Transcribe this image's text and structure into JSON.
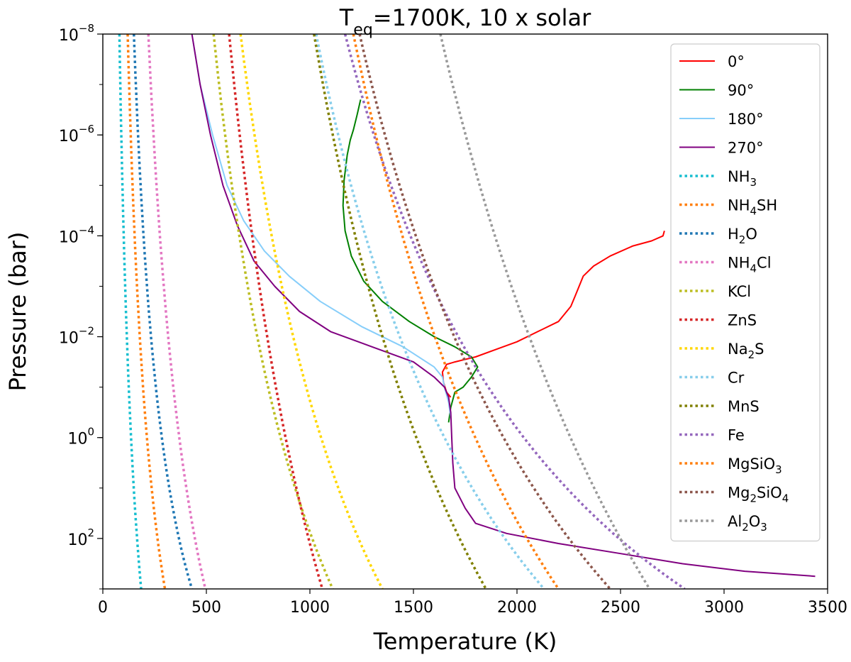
{
  "chart_data": {
    "type": "line",
    "title": {
      "main": "T",
      "sub": "eq",
      "rest": "=1700K, 10 x solar"
    },
    "xlabel": "Temperature (K)",
    "ylabel": "Pressure (bar)",
    "xlim": [
      0,
      3500
    ],
    "ylim_log10": [
      -8,
      3
    ],
    "y_scale": "log",
    "y_inverted": true,
    "xticks": [
      0,
      500,
      1000,
      1500,
      2000,
      2500,
      3000,
      3500
    ],
    "yticks": [
      {
        "base": "10",
        "exp": "−8",
        "value": -8
      },
      {
        "base": "10",
        "exp": "−6",
        "value": -6
      },
      {
        "base": "10",
        "exp": "−4",
        "value": -4
      },
      {
        "base": "10",
        "exp": "−2",
        "value": -2
      },
      {
        "base": "10",
        "exp": "0",
        "value": 0
      },
      {
        "base": "10",
        "exp": "2",
        "value": 2
      }
    ],
    "legend_position": "upper right",
    "grid": false,
    "series": [
      {
        "name": "0°",
        "color": "#ff0000",
        "style": "solid",
        "t": [
          2712,
          2705,
          2650,
          2560,
          2450,
          2370,
          2320,
          2300,
          2280,
          2260,
          2200,
          2100,
          2000,
          1900,
          1800,
          1750,
          1700,
          1660,
          1640,
          1645,
          1660,
          1680
        ],
        "logp": [
          -4.1,
          -4.0,
          -3.9,
          -3.8,
          -3.6,
          -3.4,
          -3.2,
          -3.0,
          -2.8,
          -2.6,
          -2.3,
          -2.1,
          -1.9,
          -1.75,
          -1.6,
          -1.55,
          -1.5,
          -1.45,
          -1.3,
          -1.1,
          -0.9,
          -0.8
        ]
      },
      {
        "name": "90°",
        "color": "#008000",
        "style": "solid",
        "t": [
          1245,
          1228,
          1210,
          1195,
          1180,
          1165,
          1160,
          1170,
          1200,
          1260,
          1350,
          1480,
          1600,
          1700,
          1780,
          1810,
          1780,
          1740,
          1700,
          1680,
          1670
        ],
        "logp": [
          -6.7,
          -6.4,
          -6.1,
          -5.9,
          -5.6,
          -5.1,
          -4.6,
          -4.1,
          -3.6,
          -3.1,
          -2.7,
          -2.3,
          -2.0,
          -1.8,
          -1.6,
          -1.4,
          -1.2,
          -1.0,
          -0.9,
          -0.6,
          -0.3
        ]
      },
      {
        "name": "180°",
        "color": "#87cefa",
        "style": "solid",
        "t": [
          430,
          470,
          530,
          600,
          680,
          780,
          900,
          1050,
          1250,
          1450,
          1600,
          1640,
          1650,
          1670,
          1680
        ],
        "logp": [
          -8.0,
          -7.0,
          -6.0,
          -5.0,
          -4.3,
          -3.7,
          -3.2,
          -2.7,
          -2.2,
          -1.8,
          -1.4,
          -1.2,
          -1.0,
          -0.7,
          -0.4
        ]
      },
      {
        "name": "270°",
        "color": "#800080",
        "style": "solid",
        "t": [
          430,
          470,
          520,
          580,
          650,
          730,
          830,
          950,
          1100,
          1300,
          1500,
          1600,
          1650,
          1670,
          1680,
          1685,
          1690,
          1700,
          1750,
          1800,
          1950,
          2200,
          2500,
          2800,
          3100,
          3440
        ],
        "logp": [
          -8.0,
          -7.0,
          -6.0,
          -5.0,
          -4.2,
          -3.5,
          -3.0,
          -2.5,
          -2.1,
          -1.8,
          -1.5,
          -1.2,
          -1.0,
          -0.8,
          -0.5,
          0.0,
          0.5,
          1.0,
          1.4,
          1.7,
          1.9,
          2.1,
          2.3,
          2.5,
          2.65,
          2.75
        ]
      },
      {
        "name": "NH₃",
        "label": {
          "base": "NH",
          "sub": "3"
        },
        "color": "#17becf",
        "style": "dotted",
        "t_top": 80,
        "t_bottom": 185
      },
      {
        "name": "NH₄SH",
        "label": {
          "base": "NH",
          "sub": "4",
          "rest": "SH"
        },
        "color": "#ff7f0e",
        "style": "dotted",
        "t_top": 120,
        "t_bottom": 300
      },
      {
        "name": "H₂O",
        "label": {
          "base": "H",
          "sub": "2",
          "rest": "O"
        },
        "color": "#1f77b4",
        "style": "dotted",
        "t_top": 150,
        "t_bottom": 430
      },
      {
        "name": "NH₄Cl",
        "label": {
          "base": "NH",
          "sub": "4",
          "rest": "Cl"
        },
        "color": "#e377c2",
        "style": "dotted",
        "t_top": 220,
        "t_bottom": 495
      },
      {
        "name": "KCl",
        "label": {
          "base": "KCl"
        },
        "color": "#bcbd22",
        "style": "dotted",
        "t_top": 535,
        "t_bottom": 1110
      },
      {
        "name": "ZnS",
        "label": {
          "base": "ZnS"
        },
        "color": "#d62728",
        "style": "dotted",
        "t_top": 610,
        "t_bottom": 1060
      },
      {
        "name": "Na₂S",
        "label": {
          "base": "Na",
          "sub": "2",
          "rest": "S"
        },
        "color": "#ffd700",
        "style": "dotted",
        "t_top": 665,
        "t_bottom": 1350
      },
      {
        "name": "Cr",
        "label": {
          "base": "Cr"
        },
        "color": "#87ceeb",
        "style": "dotted",
        "t_top": 1030,
        "t_bottom": 2130
      },
      {
        "name": "MnS",
        "label": {
          "base": "MnS"
        },
        "color": "#808000",
        "style": "dotted",
        "t_top": 1020,
        "t_bottom": 1850
      },
      {
        "name": "Fe",
        "label": {
          "base": "Fe"
        },
        "color": "#9467bd",
        "style": "dotted",
        "t_top": 1170,
        "t_bottom": 2810
      },
      {
        "name": "MgSiO₃",
        "label": {
          "base": "MgSiO",
          "sub": "3"
        },
        "color": "#ff7f0e",
        "style": "dotted",
        "t_top": 1210,
        "t_bottom": 2200
      },
      {
        "name": "Mg₂SiO₄",
        "label": {
          "base": "Mg",
          "sub": "2",
          "rest": "SiO",
          "sub2": "4"
        },
        "color": "#8c564b",
        "style": "dotted",
        "t_top": 1240,
        "t_bottom": 2450
      },
      {
        "name": "Al₂O₃",
        "label": {
          "base": "Al",
          "sub": "2",
          "rest": "O",
          "sub2": "3"
        },
        "color": "#999999",
        "style": "dotted",
        "t_top": 1630,
        "t_bottom": 2640
      }
    ]
  }
}
